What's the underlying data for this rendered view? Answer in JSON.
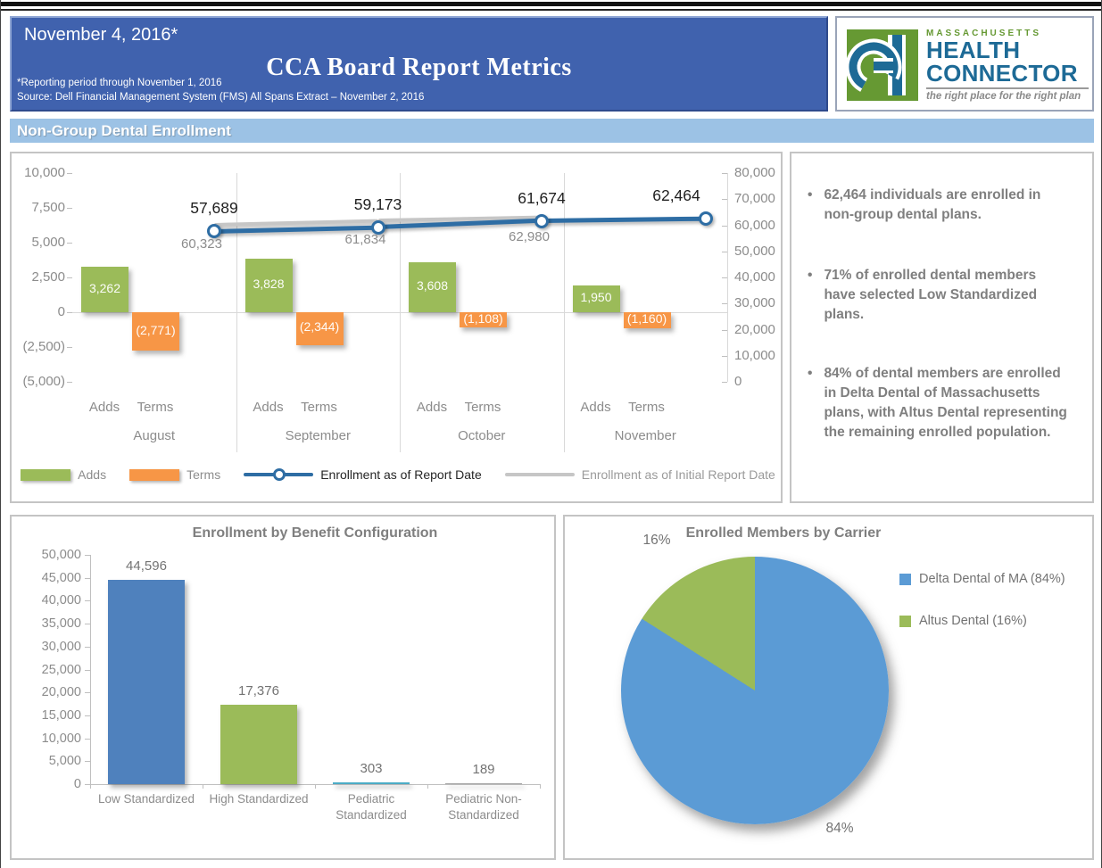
{
  "header": {
    "date": "November 4, 2016*",
    "title": "CCA Board Report Metrics",
    "footnote1": "*Reporting period through November 1, 2016",
    "footnote2": "Source: Dell Financial Management System (FMS) All Spans Extract – November 2, 2016"
  },
  "logo": {
    "region": "MASSACHUSETTS",
    "name_line1": "HEALTH",
    "name_line2": "CONNECTOR",
    "tagline": "the right place for the right plan"
  },
  "section_title": "Non-Group Dental Enrollment",
  "bullets": [
    "62,464 individuals are enrolled in non-group dental plans.",
    "71% of enrolled dental members have selected Low Standardized plans.",
    "84% of dental members are enrolled in Delta Dental of Massachusetts plans, with Altus Dental representing the remaining enrolled population."
  ],
  "colors": {
    "header_blue": "#4062AE",
    "band_blue": "#9CC2E5",
    "adds_green": "#9BBB59",
    "terms_orange": "#F79646",
    "report_line_blue": "#2E6DA4",
    "initial_line_gray": "#C6C6C6",
    "bar_blue": "#4F81BD",
    "pediatric_teal": "#4BACC6",
    "pediatric_gray": "#A6A6A6",
    "pie_blue": "#5B9BD5",
    "pie_green": "#9BBB59",
    "logo_green": "#669933",
    "logo_blue": "#1D6A96"
  },
  "chart_data": [
    {
      "id": "non-group-dental-enrollment",
      "type": "bar+line",
      "categories": [
        "August",
        "September",
        "October",
        "November"
      ],
      "sub_categories": [
        "Adds",
        "Terms"
      ],
      "series": [
        {
          "name": "Adds",
          "type": "bar",
          "color": "#9BBB59",
          "values": [
            3262,
            3828,
            3608,
            1950
          ],
          "labels": [
            "3,262",
            "3,828",
            "3,608",
            "1,950"
          ]
        },
        {
          "name": "Terms",
          "type": "bar",
          "color": "#F79646",
          "values": [
            -2771,
            -2344,
            -1108,
            -1160
          ],
          "labels": [
            "(2,771)",
            "(2,344)",
            "(1,108)",
            "(1,160)"
          ]
        },
        {
          "name": "Enrollment as of Report Date",
          "type": "line",
          "axis": "right",
          "color": "#2E6DA4",
          "values": [
            57689,
            59173,
            61674,
            62464
          ],
          "labels": [
            "57,689",
            "59,173",
            "61,674",
            "62,464"
          ],
          "label_position": "above"
        },
        {
          "name": "Enrollment as of Initial Report Date",
          "type": "line",
          "axis": "right",
          "color": "#C6C6C6",
          "values": [
            60323,
            61834,
            62980,
            null
          ],
          "labels": [
            "60,323",
            "61,834",
            "62,980",
            ""
          ],
          "label_position": "below"
        }
      ],
      "left_axis": {
        "min": -5000,
        "max": 10000,
        "ticks": [
          "10,000",
          "7,500",
          "5,000",
          "2,500",
          "0",
          "(2,500)",
          "(5,000)"
        ],
        "tick_values": [
          10000,
          7500,
          5000,
          2500,
          0,
          -2500,
          -5000
        ]
      },
      "right_axis": {
        "min": 0,
        "max": 80000,
        "ticks": [
          "80,000",
          "70,000",
          "60,000",
          "50,000",
          "40,000",
          "30,000",
          "20,000",
          "10,000",
          "0"
        ],
        "tick_values": [
          80000,
          70000,
          60000,
          50000,
          40000,
          30000,
          20000,
          10000,
          0
        ]
      },
      "legend": [
        "Adds",
        "Terms",
        "Enrollment as of Report Date",
        "Enrollment as of Initial Report Date"
      ],
      "grid": "off"
    },
    {
      "id": "enrollment-by-benefit-configuration",
      "type": "bar",
      "title": "Enrollment by Benefit Configuration",
      "categories": [
        "Low Standardized",
        "High Standardized",
        "Pediatric Standardized",
        "Pediatric Non-Standardized"
      ],
      "values": [
        44596,
        17376,
        303,
        189
      ],
      "labels": [
        "44,596",
        "17,376",
        "303",
        "189"
      ],
      "bar_colors": [
        "#4F81BD",
        "#9BBB59",
        "#4BACC6",
        "#A6A6A6"
      ],
      "ylim": [
        0,
        50000
      ],
      "yticks": [
        "50,000",
        "45,000",
        "40,000",
        "35,000",
        "30,000",
        "25,000",
        "20,000",
        "15,000",
        "10,000",
        "5,000",
        "0"
      ],
      "ytick_values": [
        50000,
        45000,
        40000,
        35000,
        30000,
        25000,
        20000,
        15000,
        10000,
        5000,
        0
      ],
      "grid": "off"
    },
    {
      "id": "enrolled-members-by-carrier",
      "type": "pie",
      "title": "Enrolled Members by Carrier",
      "slices": [
        {
          "name": "Delta Dental of MA (84%)",
          "value": 84,
          "color": "#5B9BD5",
          "callout": "84%"
        },
        {
          "name": "Altus Dental (16%)",
          "value": 16,
          "color": "#9BBB59",
          "callout": "16%"
        }
      ],
      "legend_position": "right"
    }
  ]
}
